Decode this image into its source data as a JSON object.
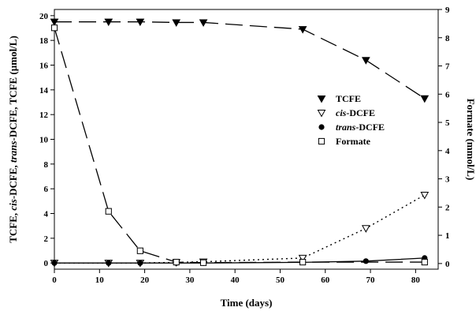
{
  "chart_data": {
    "type": "line",
    "xlabel": "Time (days)",
    "ylabel_left_parts": [
      {
        "text": "TCFE, ",
        "italic": false
      },
      {
        "text": "cis",
        "italic": true
      },
      {
        "text": "-DCFE, ",
        "italic": false
      },
      {
        "text": "trans",
        "italic": true
      },
      {
        "text": "-DCFE, TCFE (µmol/L)",
        "italic": false
      }
    ],
    "ylabel_right": "Formate (mmol/L)",
    "xlim": [
      0,
      85
    ],
    "ylim_left": [
      -0.5,
      20.5
    ],
    "ylim_right": [
      -0.2,
      9
    ],
    "xticks": [
      0,
      10,
      20,
      30,
      40,
      50,
      60,
      70,
      80
    ],
    "yticks_left": [
      0,
      2,
      4,
      6,
      8,
      10,
      12,
      14,
      16,
      18,
      20
    ],
    "yticks_right": [
      0,
      1,
      2,
      3,
      4,
      5,
      6,
      7,
      8,
      9
    ],
    "grid": false,
    "legend_position": "center-right",
    "series": [
      {
        "name": "TCFE",
        "name_parts": [
          {
            "text": "TCFE",
            "italic": false
          }
        ],
        "axis": "left",
        "marker": "triangle-down-filled",
        "line": "long-dash",
        "x": [
          0,
          12,
          19,
          27,
          33,
          55,
          69,
          82
        ],
        "y": [
          19.5,
          19.5,
          19.5,
          19.45,
          19.45,
          18.9,
          16.4,
          13.3
        ]
      },
      {
        "name": "cis-DCFE",
        "name_parts": [
          {
            "text": "cis",
            "italic": true
          },
          {
            "text": "-DCFE",
            "italic": false
          }
        ],
        "axis": "left",
        "marker": "triangle-down-open",
        "line": "dotted",
        "x": [
          0,
          12,
          19,
          27,
          33,
          55,
          69,
          82
        ],
        "y": [
          0,
          0,
          0,
          0.05,
          0.1,
          0.4,
          2.8,
          5.5
        ]
      },
      {
        "name": "trans-DCFE",
        "name_parts": [
          {
            "text": "trans",
            "italic": true
          },
          {
            "text": "-DCFE",
            "italic": false
          }
        ],
        "axis": "left",
        "marker": "circle-filled",
        "line": "solid",
        "x": [
          0,
          12,
          19,
          27,
          33,
          55,
          69,
          82
        ],
        "y": [
          0,
          0,
          0,
          0,
          0,
          0.05,
          0.15,
          0.4
        ]
      },
      {
        "name": "Formate",
        "name_parts": [
          {
            "text": "Formate",
            "italic": false
          }
        ],
        "axis": "right",
        "marker": "square-open",
        "line": "long-dash",
        "x": [
          0,
          12,
          19,
          27,
          33,
          55,
          82
        ],
        "y": [
          8.35,
          1.85,
          0.45,
          0.05,
          0.03,
          0.05,
          0.05
        ]
      }
    ]
  }
}
